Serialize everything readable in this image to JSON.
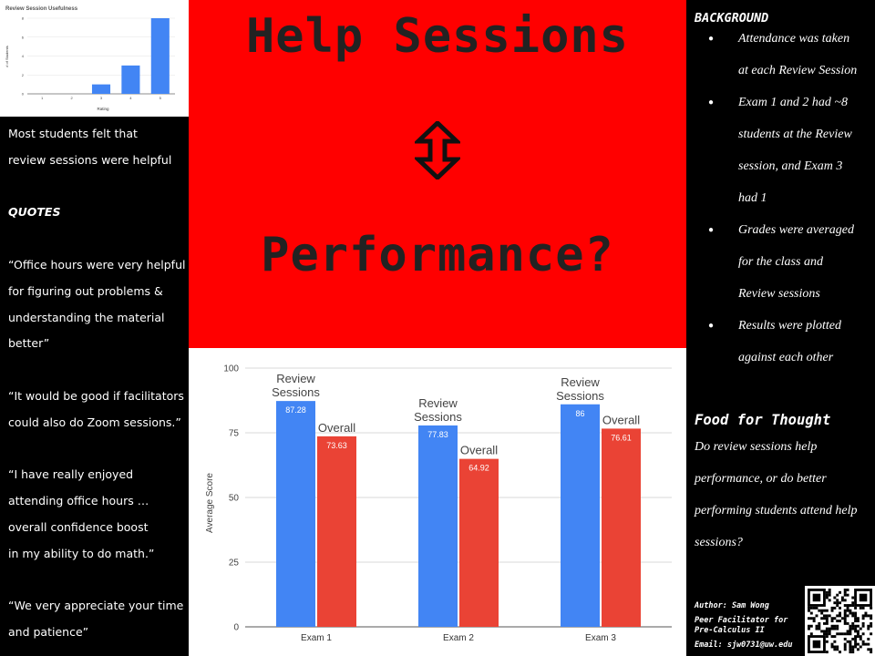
{
  "mini_chart": {
    "type": "bar",
    "title": "Review Session Usefulness",
    "xlabel": "Rating",
    "ylabel": "# of Students",
    "categories": [
      "1",
      "2",
      "3",
      "4",
      "5"
    ],
    "values": [
      0,
      0,
      1,
      3,
      8
    ],
    "ylim": [
      0,
      8
    ],
    "yticks": [
      0,
      2,
      4,
      6,
      8
    ],
    "color": "#4285f4"
  },
  "left": {
    "summary": [
      "Most students felt that",
      "review sessions were helpful"
    ],
    "quotes_heading": "QUOTES",
    "quote1": [
      "“Office hours were very helpful",
      "for figuring out problems &",
      "understanding the material",
      "better”"
    ],
    "quote2": [
      "“It would be good if facilitators",
      "could also do Zoom sessions.”"
    ],
    "quote3": [
      "“I have really enjoyed",
      "attending office hours …",
      "overall confidence boost",
      "in my ability to do math.”"
    ],
    "quote4": [
      "“We very appreciate your time",
      "and patience”"
    ]
  },
  "title": {
    "line1": "Help Sessions",
    "line2": "Performance?",
    "arrow_icon": "up-down-arrow"
  },
  "chart_data": {
    "type": "bar",
    "title": "",
    "xlabel": "",
    "ylabel": "Average Score",
    "categories": [
      "Exam 1",
      "Exam 2",
      "Exam 3"
    ],
    "ylim": [
      0,
      100
    ],
    "yticks": [
      0,
      25,
      50,
      75,
      100
    ],
    "grid": true,
    "series": [
      {
        "name": "Review Sessions",
        "values": [
          87.28,
          77.83,
          86
        ],
        "labels": [
          "87.28",
          "77.83",
          "86"
        ],
        "color": "#4285f4"
      },
      {
        "name": "Overall",
        "values": [
          73.63,
          64.92,
          76.61
        ],
        "labels": [
          "73.63",
          "64.92",
          "76.61"
        ],
        "color": "#ea4335"
      }
    ]
  },
  "right": {
    "background_heading": "BACKGROUND",
    "background_items": [
      [
        "Attendance was taken",
        "at each Review Session"
      ],
      [
        "Exam 1 and 2 had ~8",
        "students at the Review",
        "session, and Exam 3",
        "had 1"
      ],
      [
        "Grades were averaged",
        "for the class and",
        "Review sessions"
      ],
      [
        "Results were plotted",
        "against each other"
      ]
    ],
    "food_heading": "Food for Thought",
    "food_lines": [
      "Do review sessions help",
      "performance, or do better",
      "performing students attend help",
      "sessions?"
    ],
    "author": "Author: Sam Wong",
    "role": [
      "Peer Facilitator for",
      "Pre-Calculus II"
    ],
    "email": "Email: sjw0731@uw.edu",
    "qr_icon": "qr-code"
  }
}
